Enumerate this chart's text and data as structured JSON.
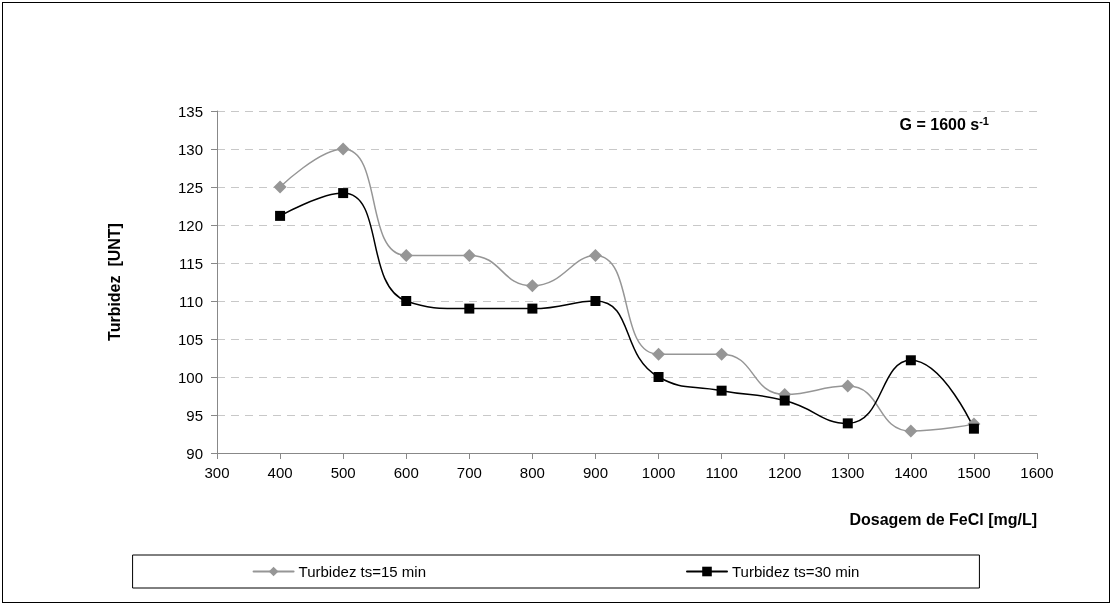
{
  "chart_data": {
    "type": "line",
    "xlabel": "Dosagem de FeCl [mg/L]",
    "ylabel": "Turbidez  [UNT]",
    "annotations": [
      "G = 1600 s$^{-1}$"
    ],
    "x": [
      400,
      500,
      600,
      700,
      800,
      900,
      1000,
      1100,
      1200,
      1300,
      1400,
      1500
    ],
    "series": [
      {
        "name": "Turbidez ts=15 min",
        "color": "#969696",
        "marker": "diamond",
        "values": [
          125,
          130,
          116,
          116,
          112,
          116,
          103,
          103,
          97.7,
          98.8,
          92.9,
          93.8
        ]
      },
      {
        "name": "Turbidez ts=30 min",
        "color": "#000000",
        "marker": "square",
        "values": [
          121.2,
          124.2,
          110,
          109,
          109,
          110,
          100,
          98.2,
          96.9,
          93.9,
          102.2,
          93.2
        ]
      }
    ],
    "xlim": [
      300,
      1600
    ],
    "xticks": [
      300,
      400,
      500,
      600,
      700,
      800,
      900,
      1000,
      1100,
      1200,
      1300,
      1400,
      1500,
      1600
    ],
    "ylim": [
      90,
      135
    ],
    "yticks": [
      90,
      95,
      100,
      105,
      110,
      115,
      120,
      125,
      130,
      135
    ],
    "grid": "y",
    "legend": "bottom",
    "line_style": "solid"
  }
}
